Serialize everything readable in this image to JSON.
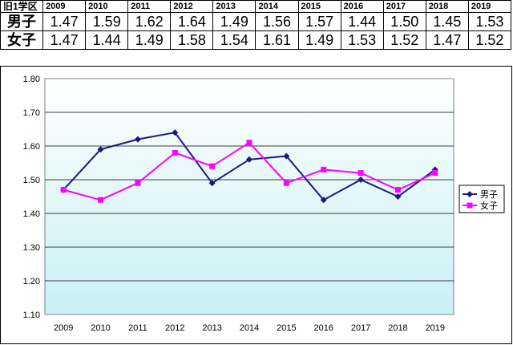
{
  "table": {
    "header": "旧1学区",
    "years": [
      "2009",
      "2010",
      "2011",
      "2012",
      "2013",
      "2014",
      "2015",
      "2016",
      "2017",
      "2018",
      "2019"
    ],
    "rows": [
      {
        "label": "男子",
        "values": [
          "1.47",
          "1.59",
          "1.62",
          "1.64",
          "1.49",
          "1.56",
          "1.57",
          "1.44",
          "1.50",
          "1.45",
          "1.53"
        ]
      },
      {
        "label": "女子",
        "values": [
          "1.47",
          "1.44",
          "1.49",
          "1.58",
          "1.54",
          "1.61",
          "1.49",
          "1.53",
          "1.52",
          "1.47",
          "1.52"
        ]
      }
    ]
  },
  "chart_data": {
    "type": "line",
    "categories": [
      "2009",
      "2010",
      "2011",
      "2012",
      "2013",
      "2014",
      "2015",
      "2016",
      "2017",
      "2018",
      "2019"
    ],
    "series": [
      {
        "name": "男子",
        "values": [
          1.47,
          1.59,
          1.62,
          1.64,
          1.49,
          1.56,
          1.57,
          1.44,
          1.5,
          1.45,
          1.53
        ],
        "color": "#1a1a80",
        "marker": "diamond"
      },
      {
        "name": "女子",
        "values": [
          1.47,
          1.44,
          1.49,
          1.58,
          1.54,
          1.61,
          1.49,
          1.53,
          1.52,
          1.47,
          1.52
        ],
        "color": "#ff00ff",
        "marker": "square"
      }
    ],
    "ylim": [
      1.1,
      1.8
    ],
    "yticks": [
      "1.80",
      "1.70",
      "1.60",
      "1.50",
      "1.40",
      "1.30",
      "1.20",
      "1.10"
    ],
    "ytick_values": [
      1.8,
      1.7,
      1.6,
      1.5,
      1.4,
      1.3,
      1.2,
      1.1
    ],
    "grid": true,
    "plot_background": "gradient white-to-light-cyan",
    "legend_position": "right"
  }
}
